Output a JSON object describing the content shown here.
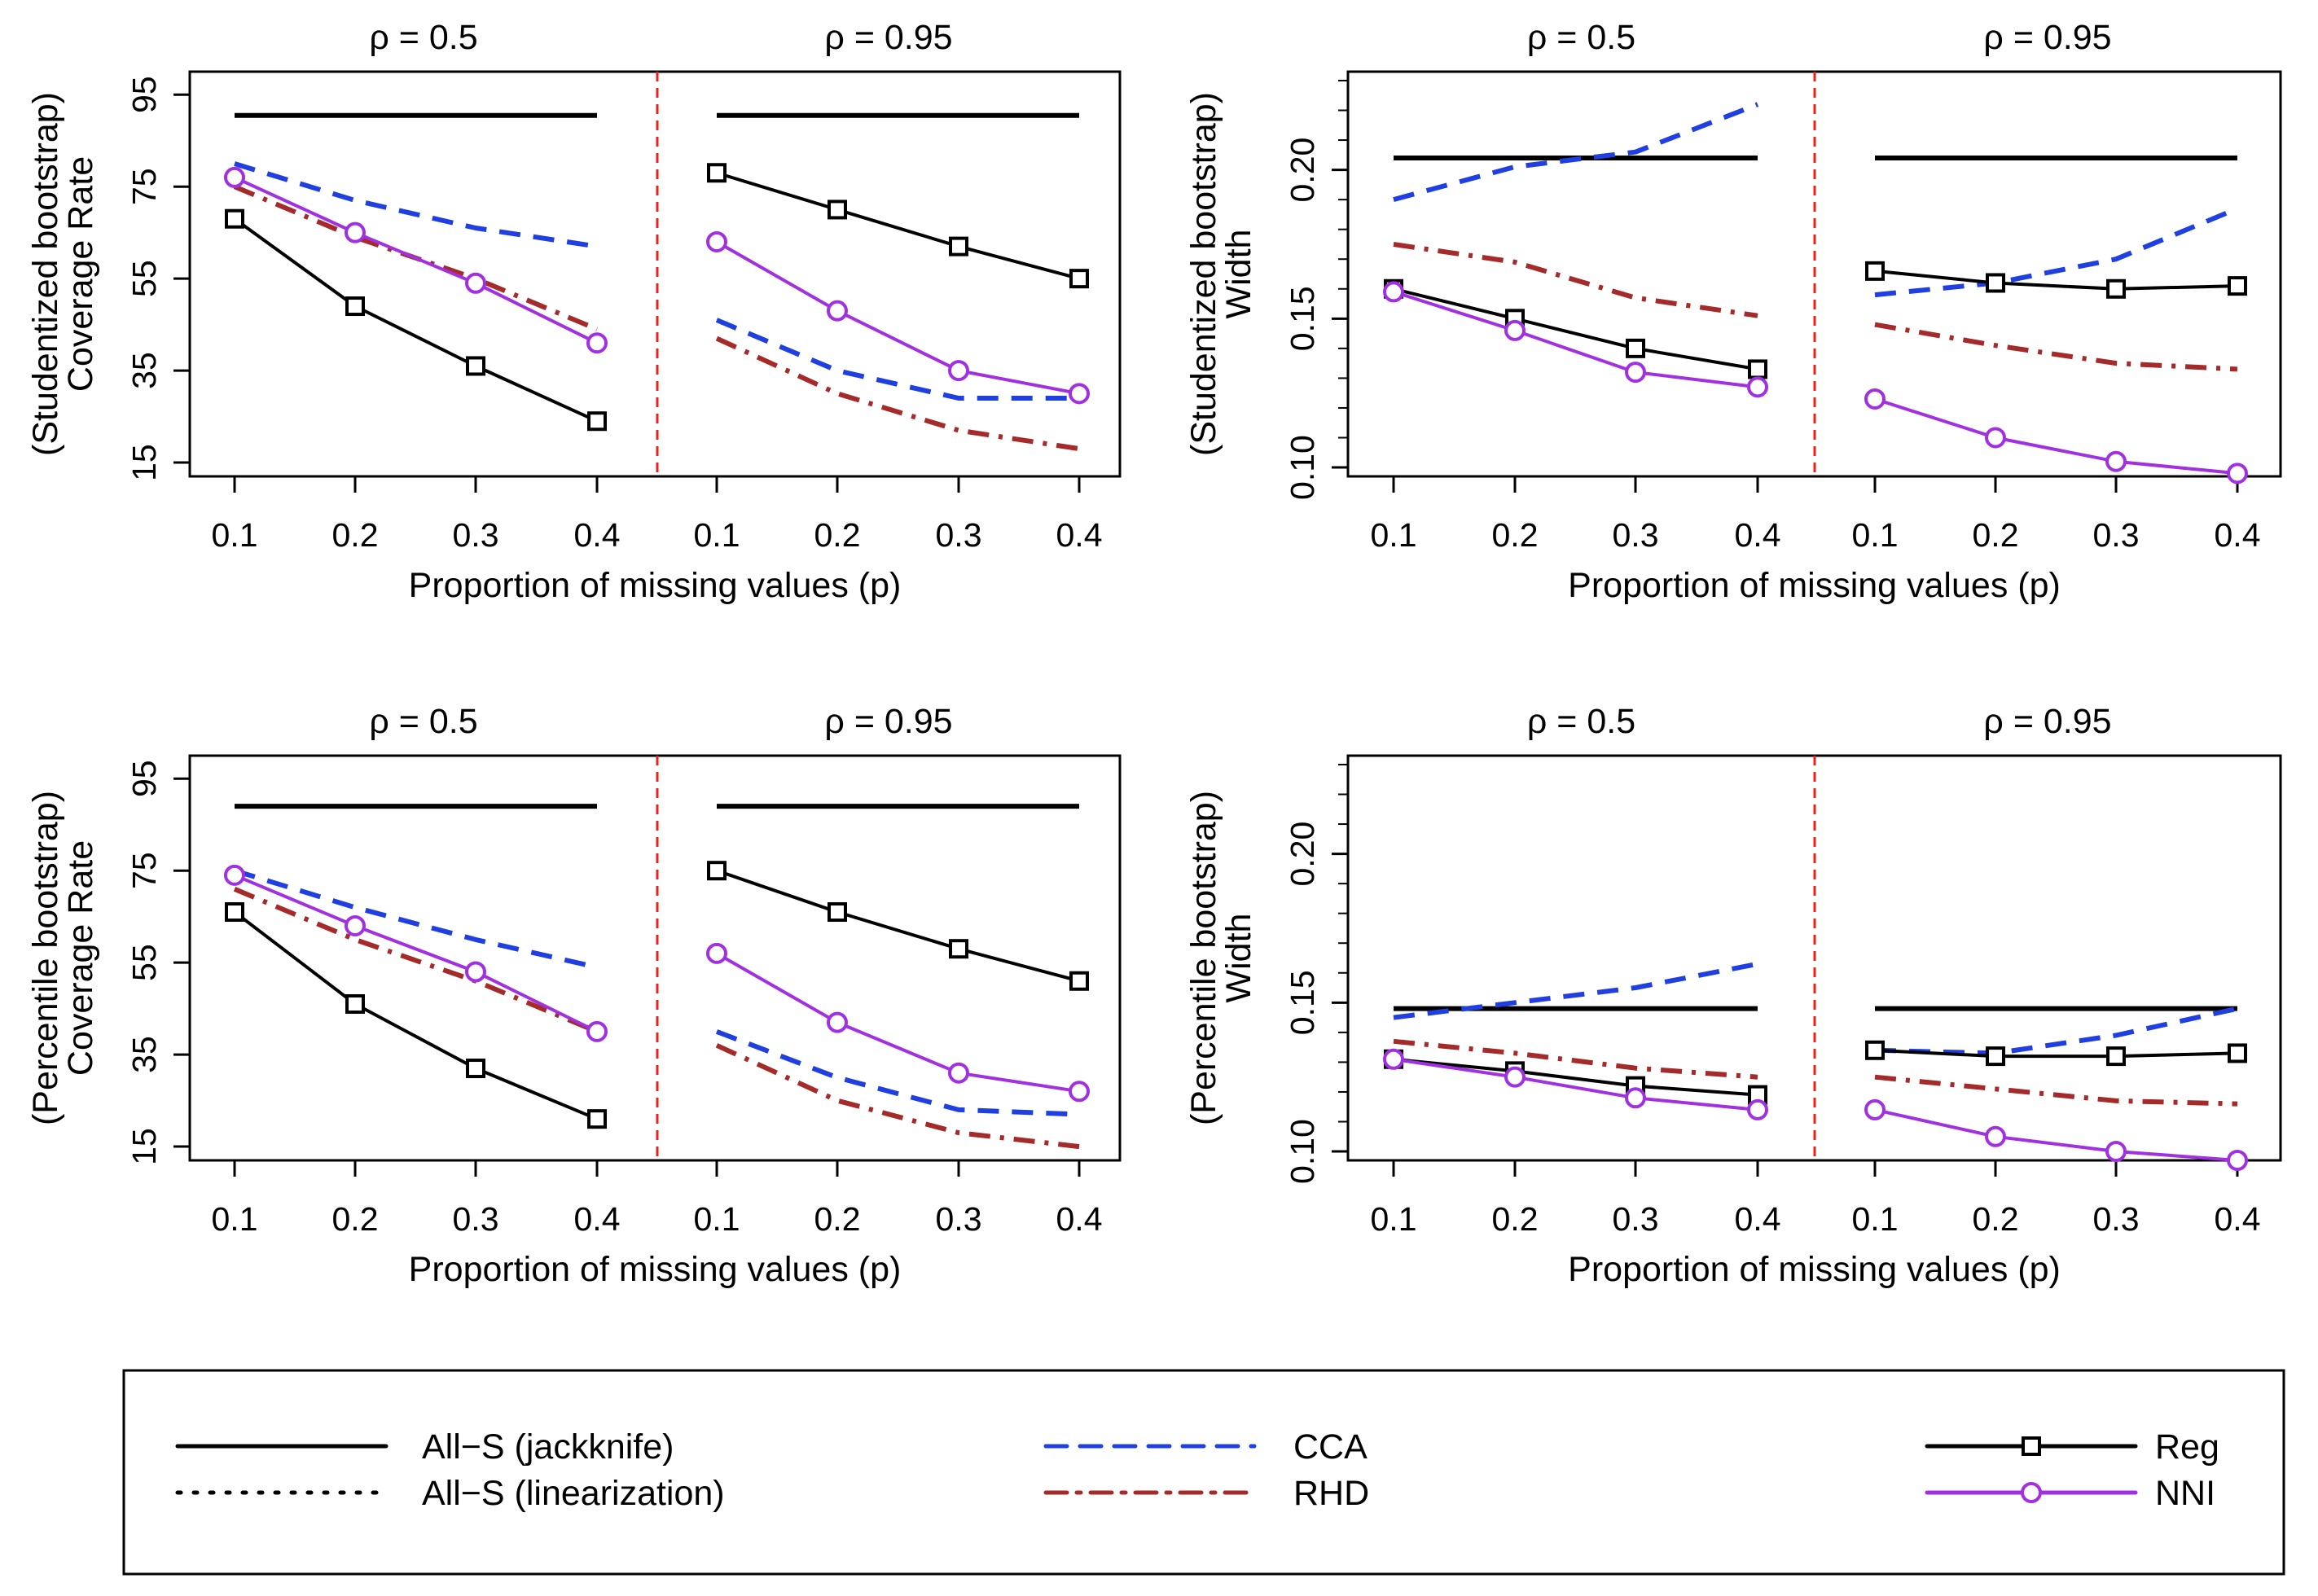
{
  "chart_data": [
    {
      "type": "line",
      "position": "top-left",
      "facets": [
        "ρ = 0.5",
        "ρ = 0.95"
      ],
      "x": [
        0.1,
        0.2,
        0.3,
        0.4
      ],
      "x_tick_labels": [
        "0.1",
        "0.2",
        "0.3",
        "0.4"
      ],
      "xlabel": "Proportion of missing values (p)",
      "ylabel": "(Studentized bootstrap)\nCoverage Rate",
      "ylim": [
        12,
        100
      ],
      "yticks": [
        15,
        35,
        55,
        75,
        95
      ],
      "series": [
        {
          "name": "All-S (jackknife)",
          "values": [
            [
              90.5,
              90.5,
              90.5,
              90.5
            ],
            [
              90.5,
              90.5,
              90.5,
              90.5
            ]
          ]
        },
        {
          "name": "CCA",
          "values": [
            [
              80,
              72,
              66,
              62
            ],
            [
              46,
              35,
              29,
              29
            ]
          ]
        },
        {
          "name": "RHD",
          "values": [
            [
              75,
              64,
              55,
              44
            ],
            [
              42,
              30,
              22,
              18
            ]
          ]
        },
        {
          "name": "Reg",
          "values": [
            [
              68,
              49,
              36,
              24
            ],
            [
              78,
              70,
              62,
              55
            ]
          ]
        },
        {
          "name": "NNI",
          "values": [
            [
              77,
              65,
              54,
              41
            ],
            [
              63,
              48,
              35,
              30
            ]
          ]
        }
      ]
    },
    {
      "type": "line",
      "position": "top-right",
      "facets": [
        "ρ = 0.5",
        "ρ = 0.95"
      ],
      "x": [
        0.1,
        0.2,
        0.3,
        0.4
      ],
      "x_tick_labels": [
        "0.1",
        "0.2",
        "0.3",
        "0.4"
      ],
      "xlabel": "Proportion of missing values (p)",
      "ylabel": "(Studentized bootstrap)\nWidth",
      "ylim": [
        0.097,
        0.233
      ],
      "yticks": [
        0.1,
        0.15,
        0.2
      ],
      "ytick_labels": [
        "0.10",
        "0.15",
        "0.20"
      ],
      "series": [
        {
          "name": "All-S (jackknife)",
          "values": [
            [
              0.204,
              0.204,
              0.204,
              0.204
            ],
            [
              0.204,
              0.204,
              0.204,
              0.204
            ]
          ]
        },
        {
          "name": "CCA",
          "values": [
            [
              0.19,
              0.201,
              0.206,
              0.222
            ],
            [
              0.158,
              0.162,
              0.17,
              0.187
            ]
          ]
        },
        {
          "name": "RHD",
          "values": [
            [
              0.175,
              0.169,
              0.157,
              0.151
            ],
            [
              0.148,
              0.141,
              0.135,
              0.133
            ]
          ]
        },
        {
          "name": "Reg",
          "values": [
            [
              0.16,
              0.15,
              0.14,
              0.133
            ],
            [
              0.166,
              0.162,
              0.16,
              0.161
            ]
          ]
        },
        {
          "name": "NNI",
          "values": [
            [
              0.159,
              0.146,
              0.132,
              0.127
            ],
            [
              0.123,
              0.11,
              0.102,
              0.098
            ]
          ]
        }
      ]
    },
    {
      "type": "line",
      "position": "bottom-left",
      "facets": [
        "ρ = 0.5",
        "ρ = 0.95"
      ],
      "x": [
        0.1,
        0.2,
        0.3,
        0.4
      ],
      "x_tick_labels": [
        "0.1",
        "0.2",
        "0.3",
        "0.4"
      ],
      "xlabel": "Proportion of missing values (p)",
      "ylabel": "(Percentile bootstrap)\nCoverage Rate",
      "ylim": [
        12,
        100
      ],
      "yticks": [
        15,
        35,
        55,
        75,
        95
      ],
      "series": [
        {
          "name": "All-S (jackknife)",
          "values": [
            [
              89,
              89,
              89,
              89
            ],
            [
              89,
              89,
              89,
              89
            ]
          ]
        },
        {
          "name": "CCA",
          "values": [
            [
              75,
              67,
              60,
              54
            ],
            [
              40,
              30,
              23,
              22
            ]
          ]
        },
        {
          "name": "RHD",
          "values": [
            [
              71,
              60,
              51,
              40
            ],
            [
              37,
              25,
              18,
              15
            ]
          ]
        },
        {
          "name": "Reg",
          "values": [
            [
              66,
              46,
              32,
              21
            ],
            [
              75,
              66,
              58,
              51
            ]
          ]
        },
        {
          "name": "NNI",
          "values": [
            [
              74,
              63,
              53,
              40
            ],
            [
              57,
              42,
              31,
              27
            ]
          ]
        }
      ]
    },
    {
      "type": "line",
      "position": "bottom-right",
      "facets": [
        "ρ = 0.5",
        "ρ = 0.95"
      ],
      "x": [
        0.1,
        0.2,
        0.3,
        0.4
      ],
      "x_tick_labels": [
        "0.1",
        "0.2",
        "0.3",
        "0.4"
      ],
      "xlabel": "Proportion of missing values (p)",
      "ylabel": "(Percentile bootstrap)\nWidth",
      "ylim": [
        0.097,
        0.233
      ],
      "yticks": [
        0.1,
        0.15,
        0.2
      ],
      "ytick_labels": [
        "0.10",
        "0.15",
        "0.20"
      ],
      "series": [
        {
          "name": "All-S (jackknife)",
          "values": [
            [
              0.148,
              0.148,
              0.148,
              0.148
            ],
            [
              0.148,
              0.148,
              0.148,
              0.148
            ]
          ]
        },
        {
          "name": "CCA",
          "values": [
            [
              0.145,
              0.15,
              0.155,
              0.163
            ],
            [
              0.134,
              0.133,
              0.139,
              0.148
            ]
          ]
        },
        {
          "name": "RHD",
          "values": [
            [
              0.137,
              0.133,
              0.128,
              0.125
            ],
            [
              0.125,
              0.121,
              0.117,
              0.116
            ]
          ]
        },
        {
          "name": "Reg",
          "values": [
            [
              0.131,
              0.127,
              0.122,
              0.119
            ],
            [
              0.134,
              0.132,
              0.132,
              0.133
            ]
          ]
        },
        {
          "name": "NNI",
          "values": [
            [
              0.131,
              0.125,
              0.118,
              0.114
            ],
            [
              0.114,
              0.105,
              0.1,
              0.097
            ]
          ]
        }
      ]
    }
  ],
  "legend": {
    "placement": "bottom",
    "entries": [
      {
        "name": "All−S (jackknife)",
        "color": "#000000",
        "style": "solid",
        "marker": ""
      },
      {
        "name": "All−S (linearization)",
        "color": "#000000",
        "style": "dotted",
        "marker": ""
      },
      {
        "name": "CCA",
        "color": "#1f3fe0",
        "style": "dashed",
        "marker": ""
      },
      {
        "name": "RHD",
        "color": "#a52a2a",
        "style": "dashdot",
        "marker": ""
      },
      {
        "name": "Reg",
        "color": "#000000",
        "style": "solid",
        "marker": "square"
      },
      {
        "name": "NNI",
        "color": "#a030e0",
        "style": "solid",
        "marker": "circle"
      }
    ]
  },
  "colors": {
    "all_s": "#000000",
    "cca": "#1f3fe0",
    "rhd": "#a52a2a",
    "reg": "#000000",
    "nni": "#a030e0",
    "divider": "#e8211c"
  }
}
